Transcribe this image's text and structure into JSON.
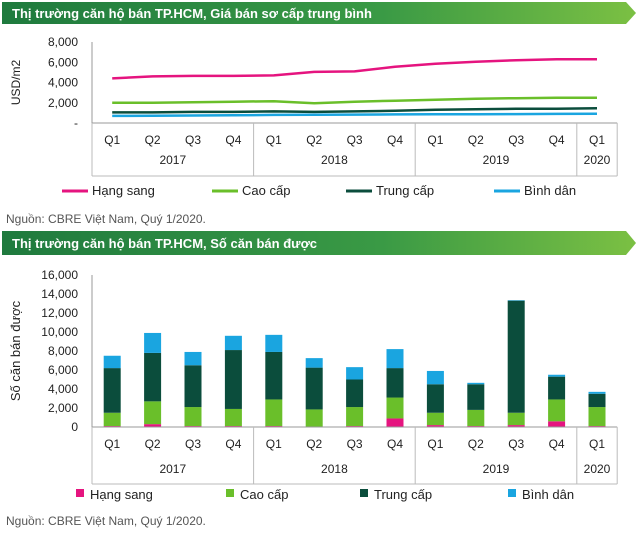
{
  "sections": [
    {
      "title": "Thị trường căn hộ bán TP.HCM, Giá bán sơ cấp trung bình",
      "source": "Nguồn: CBRE Việt Nam, Quý 1/2020."
    },
    {
      "title": "Thị trường căn hộ bán TP.HCM, Số căn bán được",
      "source": "Nguồn: CBRE Việt Nam, Quý 1/2020."
    }
  ],
  "colors": {
    "banner_dark": "#2e8b4a",
    "banner_light": "#7bc043",
    "hang_sang": "#e5147f",
    "cao_cap": "#6abf2a",
    "trung_cap": "#0b4d3c",
    "binh_dan": "#1aa5e0"
  },
  "chart_data": [
    {
      "type": "line",
      "ylabel": "USD/m2",
      "ylim": [
        0,
        8000
      ],
      "yticks": [
        "8,000",
        "6,000",
        "4,000",
        "2,000",
        "-"
      ],
      "grid": false,
      "legend_position": "bottom",
      "categories": [
        "Q1",
        "Q2",
        "Q3",
        "Q4",
        "Q1",
        "Q2",
        "Q3",
        "Q4",
        "Q1",
        "Q2",
        "Q3",
        "Q4",
        "Q1"
      ],
      "years": [
        "2017",
        "2018",
        "2019",
        "2020"
      ],
      "series": [
        {
          "name": "Hạng sang",
          "values": [
            4400,
            4600,
            4650,
            4650,
            4700,
            5050,
            5100,
            5550,
            5850,
            6050,
            6200,
            6300,
            6300
          ]
        },
        {
          "name": "Cao cấp",
          "values": [
            2000,
            2000,
            2050,
            2100,
            2150,
            1950,
            2100,
            2200,
            2300,
            2400,
            2450,
            2500,
            2500
          ]
        },
        {
          "name": "Trung cấp",
          "values": [
            1050,
            1050,
            1100,
            1100,
            1150,
            1100,
            1150,
            1200,
            1300,
            1350,
            1400,
            1400,
            1450
          ]
        },
        {
          "name": "Bình dân",
          "values": [
            700,
            720,
            740,
            760,
            800,
            820,
            830,
            850,
            860,
            870,
            880,
            900,
            920
          ]
        }
      ]
    },
    {
      "type": "bar",
      "stacked": true,
      "ylabel": "Số căn bán được",
      "ylim": [
        0,
        16000
      ],
      "yticks": [
        "16,000",
        "14,000",
        "12,000",
        "10,000",
        "8,000",
        "6,000",
        "4,000",
        "2,000",
        "0"
      ],
      "grid": false,
      "legend_position": "bottom",
      "categories": [
        "Q1",
        "Q2",
        "Q3",
        "Q4",
        "Q1",
        "Q2",
        "Q3",
        "Q4",
        "Q1",
        "Q2",
        "Q3",
        "Q4",
        "Q1"
      ],
      "years": [
        "2017",
        "2018",
        "2019",
        "2020"
      ],
      "series": [
        {
          "name": "Hạng sang",
          "values": [
            100,
            300,
            100,
            100,
            100,
            50,
            100,
            900,
            200,
            100,
            200,
            600,
            100
          ]
        },
        {
          "name": "Cao cấp",
          "values": [
            1400,
            2400,
            2000,
            1800,
            2800,
            1800,
            2000,
            2200,
            1300,
            1700,
            1300,
            2300,
            2000
          ]
        },
        {
          "name": "Trung cấp",
          "values": [
            4700,
            5100,
            4400,
            6200,
            5000,
            4400,
            2900,
            3100,
            3000,
            2700,
            11800,
            2400,
            1400
          ]
        },
        {
          "name": "Bình dân",
          "values": [
            1300,
            2100,
            1400,
            1500,
            1800,
            1000,
            1300,
            2000,
            1400,
            150,
            50,
            200,
            200
          ]
        }
      ]
    }
  ]
}
